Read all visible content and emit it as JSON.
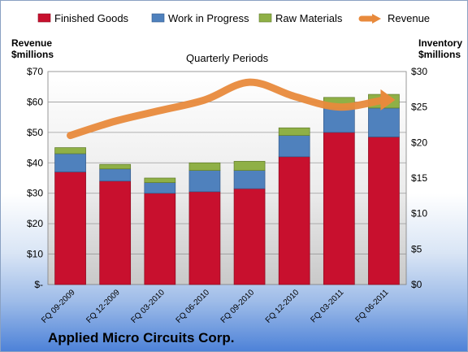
{
  "chart_data": {
    "type": "bar",
    "title": "Quarterly Periods",
    "footer": "Applied Micro Circuits Corp.",
    "ylabel_left_1": "Revenue",
    "ylabel_left_2": "$millions",
    "ylabel_right_1": "Inventory",
    "ylabel_right_2": "$millions",
    "ylim_left": [
      0,
      70
    ],
    "ylim_right": [
      0,
      30
    ],
    "left_ticks": [
      "$-",
      "$10",
      "$20",
      "$30",
      "$40",
      "$50",
      "$60",
      "$70"
    ],
    "right_ticks": [
      "$0",
      "$5",
      "$10",
      "$15",
      "$20",
      "$25",
      "$30"
    ],
    "categories": [
      "FQ 09-2009",
      "FQ 12-2009",
      "FQ 03-2010",
      "FQ 06-2010",
      "FQ 09-2010",
      "FQ 12-2010",
      "FQ 03-2011",
      "FQ 06-2011"
    ],
    "grid": true,
    "legend_position": "top",
    "series": [
      {
        "name": "Finished Goods",
        "axis": "left",
        "type": "bar",
        "color": "#c8102e",
        "values": [
          37,
          34,
          30,
          30.5,
          31.5,
          42,
          50,
          48.5
        ]
      },
      {
        "name": "Work in Progress",
        "axis": "left",
        "type": "bar",
        "color": "#4f81bd",
        "values": [
          6,
          4,
          3.5,
          7,
          6,
          7,
          8,
          9.5
        ]
      },
      {
        "name": "Raw Materials",
        "axis": "left",
        "type": "bar",
        "color": "#8fb046",
        "values": [
          2,
          1.5,
          1.5,
          2.5,
          3,
          2.5,
          3.5,
          4.5
        ]
      },
      {
        "name": "Revenue",
        "axis": "right",
        "type": "line",
        "color": "#e88a3c",
        "values": [
          21,
          23,
          24.5,
          26,
          28.5,
          26.5,
          25,
          26
        ]
      }
    ]
  }
}
